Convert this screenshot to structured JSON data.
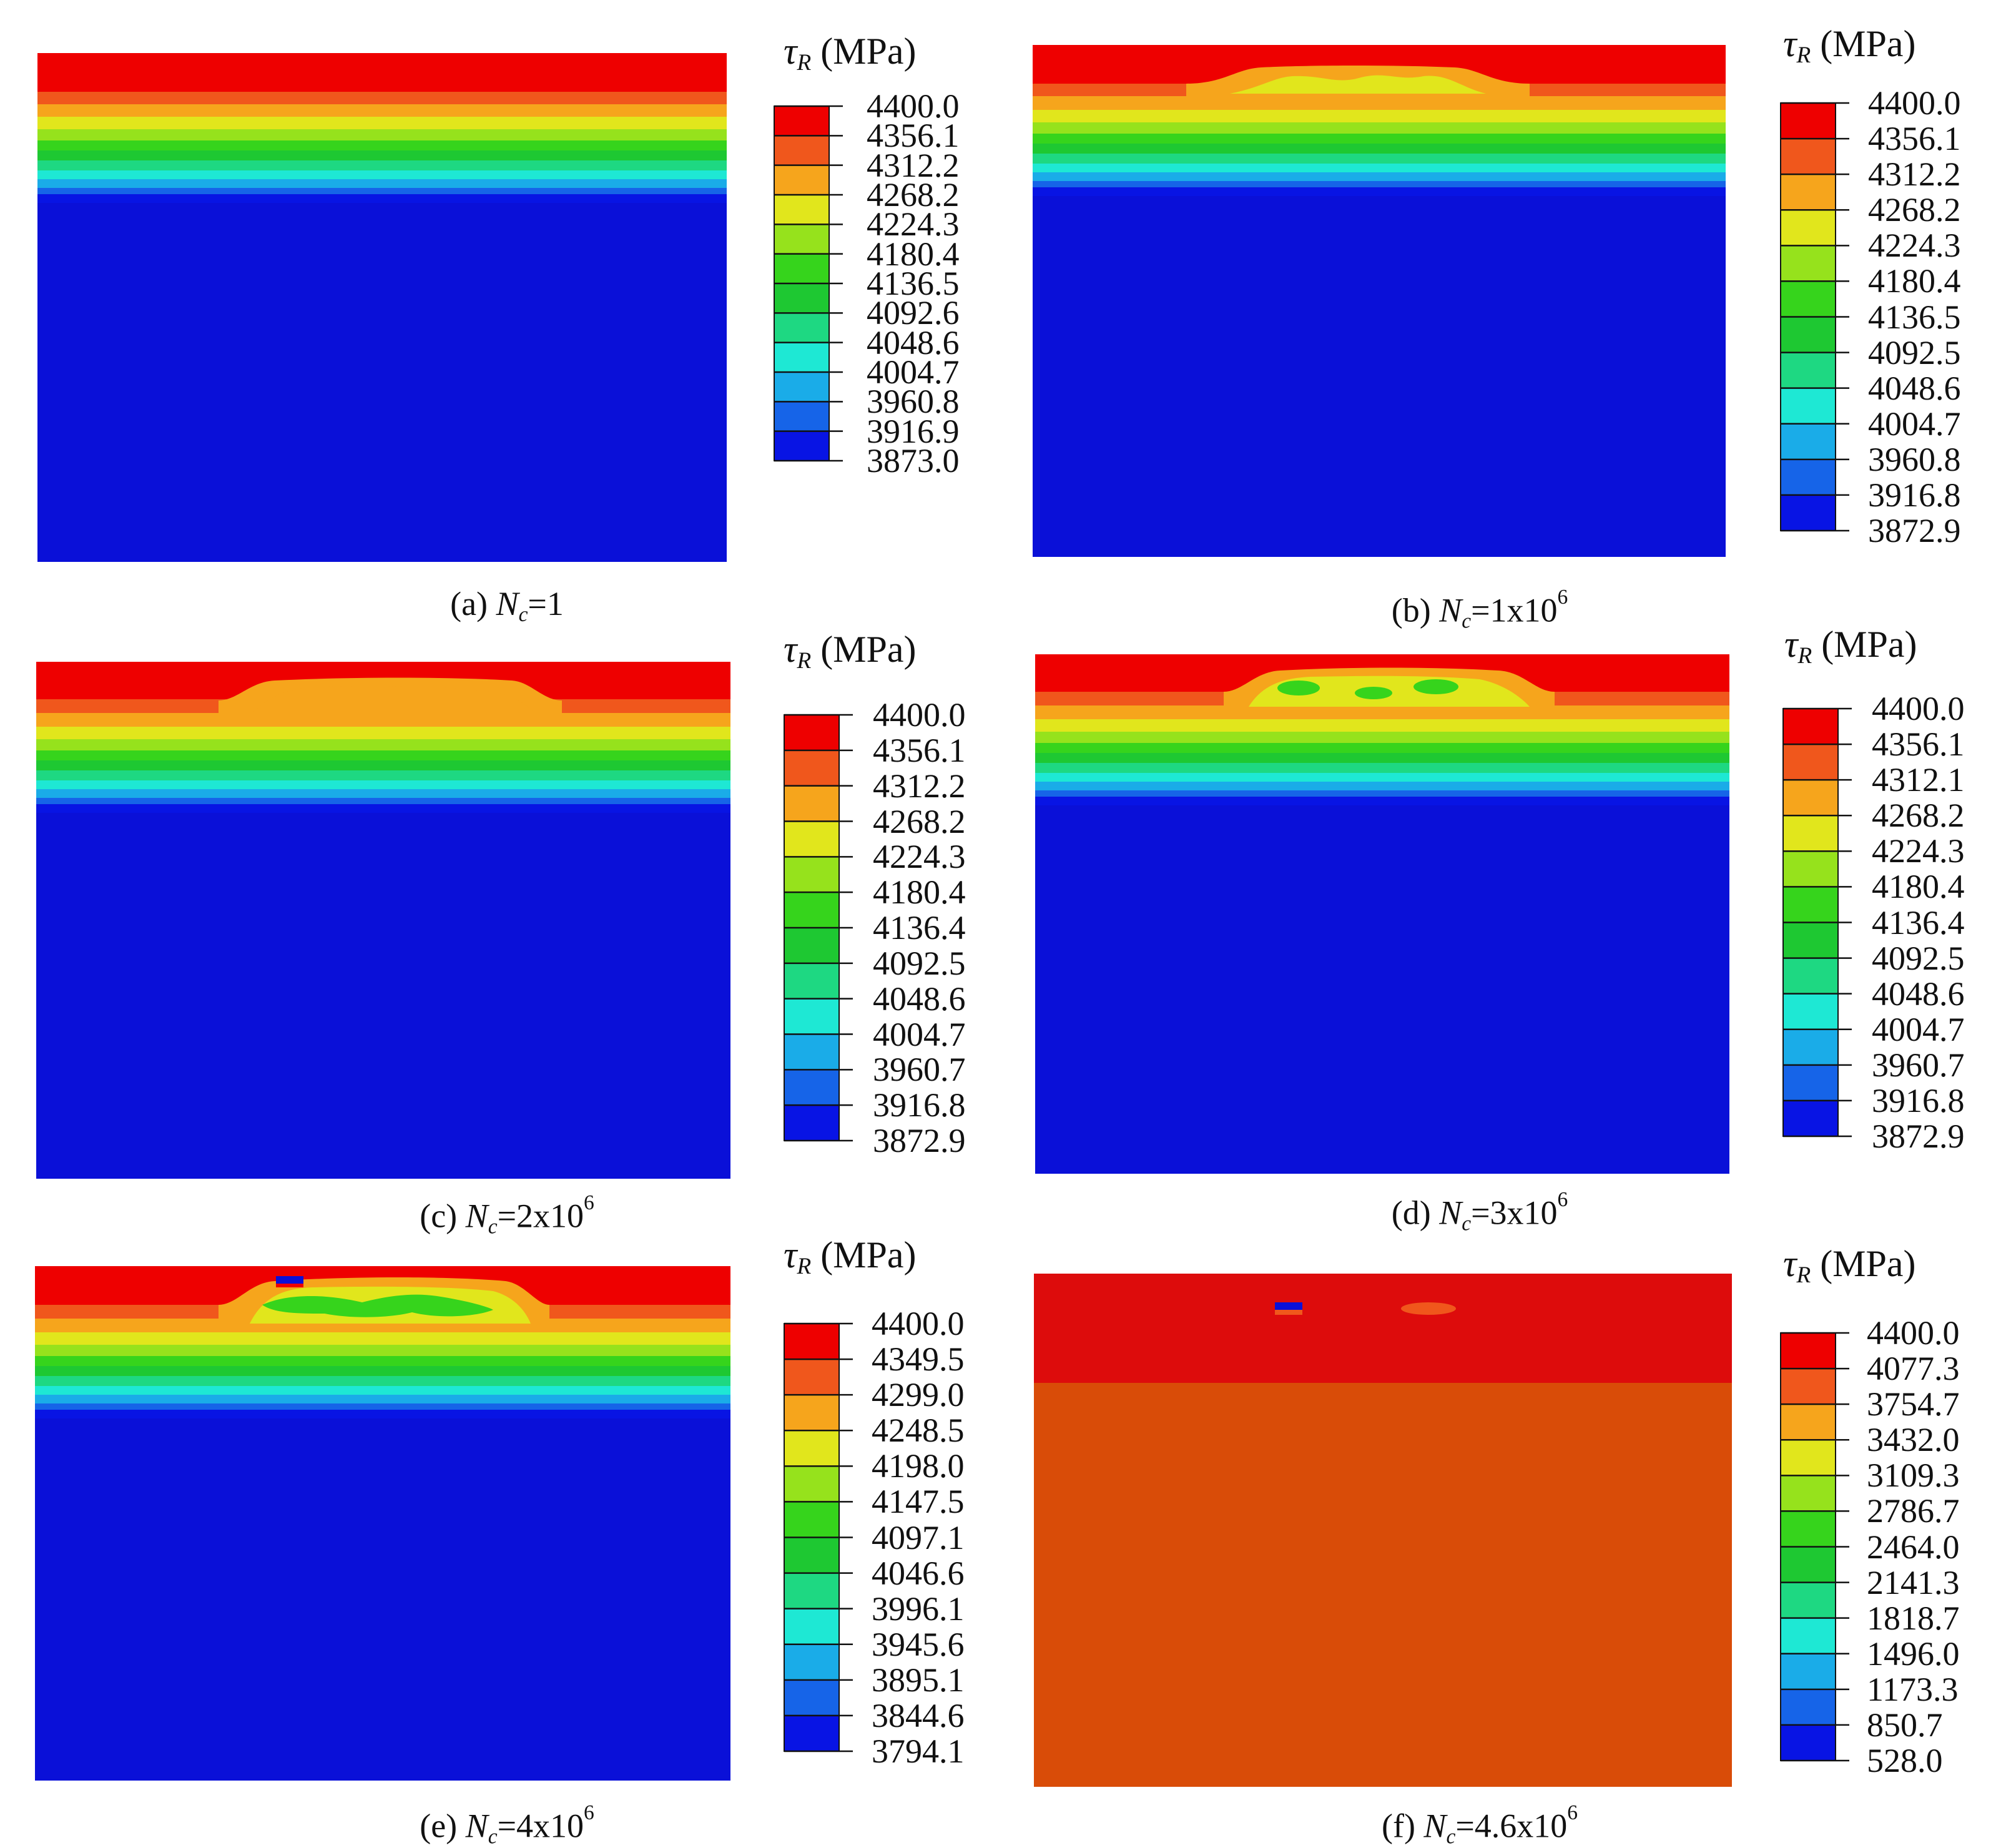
{
  "legend_title": {
    "symbol": "τ",
    "subscript": "R",
    "unit": "(MPa)"
  },
  "colormap": {
    "bands_top_to_bottom": [
      "#ee0000",
      "#f0571c",
      "#f6a51c",
      "#e1e61c",
      "#96e21c",
      "#36d41c",
      "#1ec832",
      "#1ed882",
      "#1ee8d4",
      "#1aace8",
      "#1664e8",
      "#0814e4"
    ],
    "field_blue": "#0a10d8",
    "field_orange": "#d94c08",
    "field_red": "#dd0c0c",
    "tick_color": "#111111"
  },
  "panels": [
    {
      "id": "a",
      "caption": {
        "prefix": "(a) ",
        "var": "N",
        "sub": "c",
        "text": "=1",
        "sup": ""
      },
      "legend_values": [
        "4400.0",
        "4356.1",
        "4312.2",
        "4268.2",
        "4224.3",
        "4180.4",
        "4136.5",
        "4092.6",
        "4048.6",
        "4004.7",
        "3960.8",
        "3916.9",
        "3873.0"
      ]
    },
    {
      "id": "b",
      "caption": {
        "prefix": "(b) ",
        "var": "N",
        "sub": "c",
        "text": "=1x10",
        "sup": "6"
      },
      "legend_values": [
        "4400.0",
        "4356.1",
        "4312.2",
        "4268.2",
        "4224.3",
        "4180.4",
        "4136.5",
        "4092.5",
        "4048.6",
        "4004.7",
        "3960.8",
        "3916.8",
        "3872.9"
      ]
    },
    {
      "id": "c",
      "caption": {
        "prefix": "(c) ",
        "var": "N",
        "sub": "c",
        "text": "=2x10",
        "sup": "6"
      },
      "legend_values": [
        "4400.0",
        "4356.1",
        "4312.2",
        "4268.2",
        "4224.3",
        "4180.4",
        "4136.4",
        "4092.5",
        "4048.6",
        "4004.7",
        "3960.7",
        "3916.8",
        "3872.9"
      ]
    },
    {
      "id": "d",
      "caption": {
        "prefix": "(d) ",
        "var": "N",
        "sub": "c",
        "text": "=3x10",
        "sup": "6"
      },
      "legend_values": [
        "4400.0",
        "4356.1",
        "4312.1",
        "4268.2",
        "4224.3",
        "4180.4",
        "4136.4",
        "4092.5",
        "4048.6",
        "4004.7",
        "3960.7",
        "3916.8",
        "3872.9"
      ]
    },
    {
      "id": "e",
      "caption": {
        "prefix": "(e) ",
        "var": "N",
        "sub": "c",
        "text": "=4x10",
        "sup": "6"
      },
      "legend_values": [
        "4400.0",
        "4349.5",
        "4299.0",
        "4248.5",
        "4198.0",
        "4147.5",
        "4097.1",
        "4046.6",
        "3996.1",
        "3945.6",
        "3895.1",
        "3844.6",
        "3794.1"
      ]
    },
    {
      "id": "f",
      "caption": {
        "prefix": "(f) ",
        "var": "N",
        "sub": "c",
        "text": "=4.6x10",
        "sup": "6"
      },
      "legend_values": [
        "4400.0",
        "4077.3",
        "3754.7",
        "3432.0",
        "3109.3",
        "2786.7",
        "2464.0",
        "2141.3",
        "1818.7",
        "1496.0",
        "1173.3",
        "850.7",
        "528.0"
      ]
    }
  ]
}
